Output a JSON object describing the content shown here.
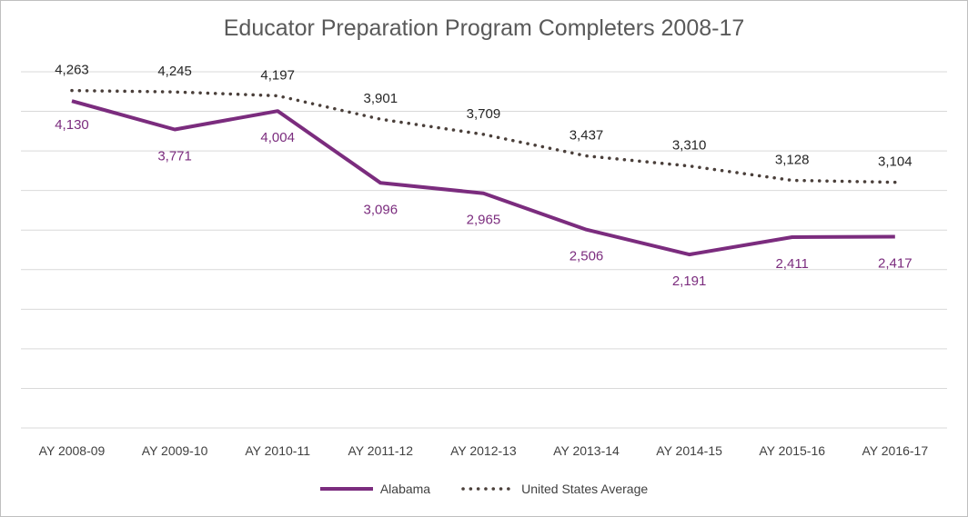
{
  "chart_data": {
    "type": "line",
    "title": "Educator Preparation Program Completers 2008-17",
    "categories": [
      "AY 2008-09",
      "AY 2009-10",
      "AY 2010-11",
      "AY 2011-12",
      "AY 2012-13",
      "AY 2013-14",
      "AY 2014-15",
      "AY 2015-16",
      "AY 2016-17"
    ],
    "series": [
      {
        "name": "Alabama",
        "values": [
          4130,
          3771,
          4004,
          3096,
          2965,
          2506,
          2191,
          2411,
          2417
        ],
        "labels": [
          "4,130",
          "3,771",
          "4,004",
          "3,096",
          "2,965",
          "2,506",
          "2,191",
          "2,411",
          "2,417"
        ],
        "color": "#7b2c7e",
        "style": "solid"
      },
      {
        "name": "United States Average",
        "values": [
          4263,
          4245,
          4197,
          3901,
          3709,
          3437,
          3310,
          3128,
          3104
        ],
        "labels": [
          "4,263",
          "4,245",
          "4,197",
          "3,901",
          "3,709",
          "3,437",
          "3,310",
          "3,128",
          "3,104"
        ],
        "color": "#4a3f3a",
        "style": "dotted"
      }
    ],
    "ylim": [
      0,
      4500
    ],
    "grid": true,
    "legend_position": "bottom",
    "xlabel": "",
    "ylabel": ""
  }
}
